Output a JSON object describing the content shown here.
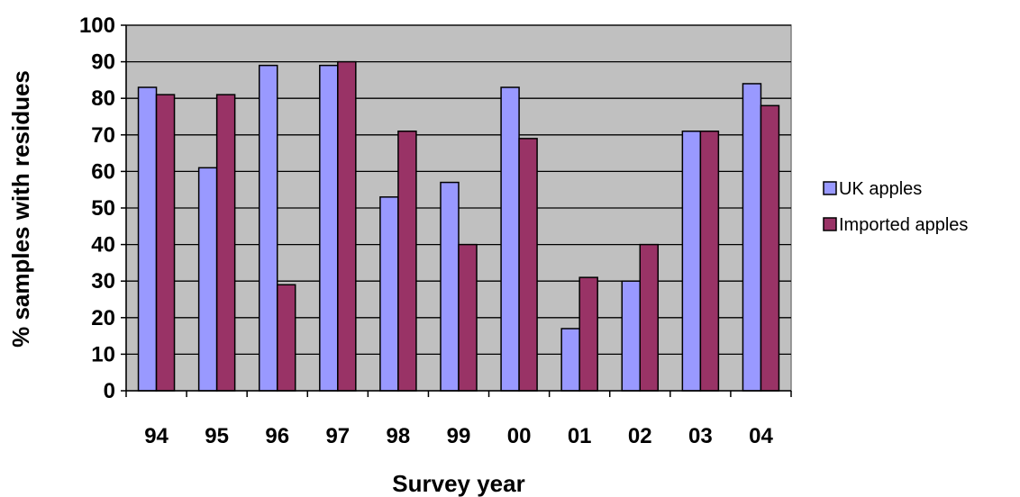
{
  "chart_data": {
    "type": "bar",
    "categories": [
      "94",
      "95",
      "96",
      "97",
      "98",
      "99",
      "00",
      "01",
      "02",
      "03",
      "04"
    ],
    "series": [
      {
        "name": "UK apples",
        "color": "#9999ff",
        "values": [
          83,
          61,
          89,
          89,
          53,
          57,
          83,
          17,
          30,
          71,
          84
        ]
      },
      {
        "name": "Imported apples",
        "color": "#993366",
        "values": [
          81,
          81,
          29,
          90,
          71,
          40,
          69,
          31,
          40,
          71,
          78
        ]
      }
    ],
    "xlabel": "Survey year",
    "ylabel": "% samples with residues",
    "ylim": [
      0,
      100
    ],
    "yticks": [
      0,
      10,
      20,
      30,
      40,
      50,
      60,
      70,
      80,
      90,
      100
    ],
    "grid": true,
    "legend_position": "right",
    "plot_background": "#c0c0c0"
  }
}
